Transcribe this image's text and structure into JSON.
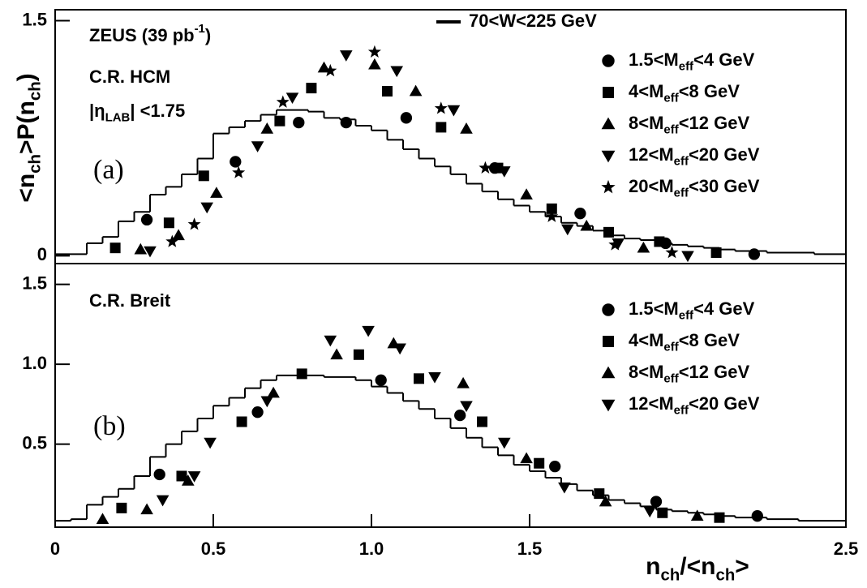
{
  "chart_data": [
    {
      "type": "scatter",
      "ylabel": [
        "<n",
        "ch",
        ">P(n",
        "ch",
        ")"
      ],
      "annotations": [
        {
          "parts": [
            "ZEUS (39 pb",
            "-1",
            ")"
          ],
          "shift": "sup"
        },
        {
          "parts": [
            "C.R. HCM"
          ]
        },
        {
          "parts": [
            "|η",
            "LAB",
            "| <1.75"
          ],
          "shift": "sub"
        },
        {
          "parts": [
            "(a)"
          ],
          "font": "serif"
        }
      ],
      "xlim": [
        0,
        2.5
      ],
      "ylim": [
        -0.05,
        1.57
      ],
      "yticks": [
        0,
        1.5
      ],
      "step": {
        "name": [
          "70<W<225 GeV"
        ],
        "color": "#000000",
        "bins": [
          0,
          0.05,
          0.1,
          0.15,
          0.2,
          0.25,
          0.3,
          0.35,
          0.4,
          0.45,
          0.5,
          0.55,
          0.6,
          0.65,
          0.7,
          0.75,
          0.8,
          0.85,
          0.9,
          0.95,
          1.0,
          1.05,
          1.1,
          1.15,
          1.2,
          1.25,
          1.3,
          1.35,
          1.4,
          1.45,
          1.5,
          1.55,
          1.6,
          1.65,
          1.7,
          1.75,
          1.8,
          1.85,
          1.9,
          1.95,
          2.0,
          2.05,
          2.1,
          2.15,
          2.2,
          2.25,
          2.3,
          2.35,
          2.4,
          2.45,
          2.5
        ],
        "values": [
          0.01,
          0.01,
          0.08,
          0.12,
          0.22,
          0.28,
          0.39,
          0.44,
          0.52,
          0.62,
          0.78,
          0.82,
          0.86,
          0.9,
          0.93,
          0.93,
          0.92,
          0.88,
          0.87,
          0.83,
          0.8,
          0.74,
          0.68,
          0.62,
          0.57,
          0.52,
          0.46,
          0.41,
          0.36,
          0.32,
          0.28,
          0.25,
          0.21,
          0.19,
          0.16,
          0.13,
          0.11,
          0.1,
          0.08,
          0.07,
          0.06,
          0.05,
          0.04,
          0.03,
          0.03,
          0.02,
          0.02,
          0.02,
          0.01,
          0.01
        ]
      },
      "series": [
        {
          "name": [
            "1.5<M",
            "eff",
            "<4 GeV"
          ],
          "marker": "circle",
          "color": "#000000",
          "x": [
            0.29,
            0.57,
            0.77,
            0.92,
            1.11,
            1.39,
            1.66,
            1.93,
            2.21
          ],
          "values": [
            0.23,
            0.6,
            0.85,
            0.85,
            0.88,
            0.56,
            0.27,
            0.08,
            0.01
          ]
        },
        {
          "name": [
            "4<M",
            "eff",
            "<8 GeV"
          ],
          "marker": "square",
          "color": "#000000",
          "x": [
            0.19,
            0.36,
            0.47,
            0.71,
            0.81,
            1.05,
            1.22,
            1.4,
            1.57,
            1.75,
            1.91,
            2.09
          ],
          "values": [
            0.05,
            0.21,
            0.51,
            0.86,
            1.07,
            1.05,
            0.82,
            0.56,
            0.3,
            0.15,
            0.09,
            0.02
          ]
        },
        {
          "name": [
            "8<M",
            "eff",
            "<12 GeV"
          ],
          "marker": "triangle-up",
          "color": "#000000",
          "x": [
            0.27,
            0.39,
            0.51,
            0.67,
            0.85,
            1.01,
            1.14,
            1.3,
            1.49,
            1.68,
            1.86
          ],
          "values": [
            0.04,
            0.13,
            0.4,
            0.81,
            1.2,
            1.22,
            1.05,
            0.81,
            0.39,
            0.19,
            0.05
          ]
        },
        {
          "name": [
            "12<M",
            "eff",
            "<20 GeV"
          ],
          "marker": "triangle-down",
          "color": "#000000",
          "x": [
            0.3,
            0.48,
            0.64,
            0.75,
            0.92,
            1.08,
            1.26,
            1.42,
            1.62,
            1.78,
            2.0
          ],
          "values": [
            0.03,
            0.31,
            0.7,
            1.01,
            1.28,
            1.18,
            0.93,
            0.54,
            0.17,
            0.08,
            0.0
          ]
        },
        {
          "name": [
            "20<M",
            "eff",
            "<30 GeV"
          ],
          "marker": "star",
          "color": "#000000",
          "x": [
            0.37,
            0.44,
            0.58,
            0.72,
            0.87,
            1.01,
            1.22,
            1.36,
            1.57,
            1.77,
            1.95
          ],
          "values": [
            0.09,
            0.2,
            0.53,
            0.98,
            1.18,
            1.3,
            0.94,
            0.56,
            0.25,
            0.07,
            0.02
          ]
        }
      ]
    },
    {
      "type": "scatter",
      "xlabel": [
        "n",
        "ch",
        "/<n",
        "ch",
        ">"
      ],
      "annotations": [
        {
          "parts": [
            "C.R. Breit"
          ]
        },
        {
          "parts": [
            "(b)"
          ],
          "font": "serif"
        }
      ],
      "xlim": [
        0,
        2.5
      ],
      "xticks": [
        0,
        0.5,
        {
          "value": 1,
          "label": "1.0"
        },
        1.5,
        2.5
      ],
      "ylim": [
        -0.02,
        1.63
      ],
      "yticks": [
        0.5,
        {
          "value": 1,
          "label": "1.0"
        },
        1.5
      ],
      "step": {
        "color": "#000000",
        "bins": [
          0,
          0.05,
          0.1,
          0.15,
          0.2,
          0.25,
          0.3,
          0.35,
          0.4,
          0.45,
          0.5,
          0.55,
          0.6,
          0.65,
          0.7,
          0.75,
          0.8,
          0.85,
          0.9,
          0.95,
          1.0,
          1.05,
          1.1,
          1.15,
          1.2,
          1.25,
          1.3,
          1.35,
          1.4,
          1.45,
          1.5,
          1.55,
          1.6,
          1.65,
          1.7,
          1.75,
          1.8,
          1.85,
          1.9,
          1.95,
          2.0,
          2.05,
          2.1,
          2.15,
          2.2,
          2.25,
          2.3,
          2.35,
          2.4,
          2.45,
          2.5
        ],
        "values": [
          0.02,
          0.03,
          0.12,
          0.17,
          0.22,
          0.3,
          0.42,
          0.5,
          0.58,
          0.66,
          0.74,
          0.79,
          0.85,
          0.9,
          0.93,
          0.93,
          0.93,
          0.92,
          0.92,
          0.9,
          0.86,
          0.82,
          0.77,
          0.72,
          0.66,
          0.6,
          0.54,
          0.48,
          0.43,
          0.37,
          0.33,
          0.29,
          0.25,
          0.21,
          0.18,
          0.15,
          0.13,
          0.11,
          0.09,
          0.08,
          0.07,
          0.06,
          0.05,
          0.04,
          0.04,
          0.03,
          0.03,
          0.02,
          0.02,
          0.02
        ]
      },
      "series": [
        {
          "name": [
            "1.5<M",
            "eff",
            "<4 GeV"
          ],
          "marker": "circle",
          "color": "#000000",
          "x": [
            0.33,
            0.64,
            1.03,
            1.28,
            1.58,
            1.9,
            2.22
          ],
          "values": [
            0.31,
            0.7,
            0.9,
            0.68,
            0.36,
            0.14,
            0.05
          ]
        },
        {
          "name": [
            "4<M",
            "eff",
            "<8 GeV"
          ],
          "marker": "square",
          "color": "#000000",
          "x": [
            0.21,
            0.4,
            0.59,
            0.78,
            0.96,
            1.15,
            1.35,
            1.53,
            1.72,
            1.92,
            2.1
          ],
          "values": [
            0.1,
            0.3,
            0.64,
            0.94,
            1.06,
            0.91,
            0.64,
            0.38,
            0.19,
            0.07,
            0.04
          ]
        },
        {
          "name": [
            "8<M",
            "eff",
            "<12 GeV"
          ],
          "marker": "triangle-up",
          "color": "#000000",
          "x": [
            0.15,
            0.29,
            0.42,
            0.69,
            0.89,
            1.07,
            1.29,
            1.49,
            1.74,
            2.03
          ],
          "values": [
            0.03,
            0.09,
            0.27,
            0.82,
            1.06,
            1.13,
            0.88,
            0.41,
            0.14,
            0.05
          ]
        },
        {
          "name": [
            "12<M",
            "eff",
            "<20 GeV"
          ],
          "marker": "triangle-down",
          "color": "#000000",
          "x": [
            0.34,
            0.44,
            0.49,
            0.67,
            0.87,
            0.99,
            1.09,
            1.2,
            1.3,
            1.42,
            1.61,
            1.88
          ],
          "values": [
            0.15,
            0.3,
            0.51,
            0.77,
            1.15,
            1.21,
            1.1,
            0.92,
            0.74,
            0.51,
            0.23,
            0.08
          ]
        }
      ]
    }
  ]
}
